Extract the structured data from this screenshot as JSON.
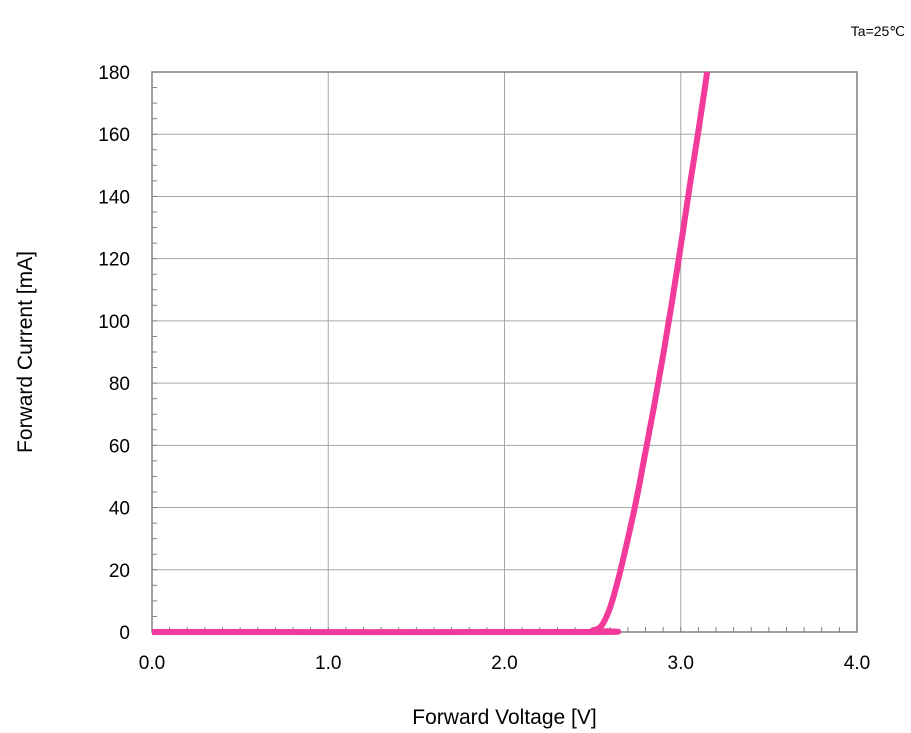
{
  "chart_data": {
    "type": "line",
    "title": "",
    "annotation": "Ta=25℃",
    "xlabel": "Forward Voltage [V]",
    "ylabel": "Forward Current [mA]",
    "xlim": [
      0.0,
      4.0
    ],
    "ylim": [
      0,
      180
    ],
    "x_ticks": [
      "0.0",
      "1.0",
      "2.0",
      "3.0",
      "4.0"
    ],
    "y_ticks": [
      "0",
      "20",
      "40",
      "60",
      "80",
      "100",
      "120",
      "140",
      "160",
      "180"
    ],
    "grid": true,
    "series": [
      {
        "color": "#f23a9b",
        "x": [
          0.0,
          2.45,
          2.5,
          2.55,
          2.6,
          2.65,
          2.7,
          2.75,
          2.8,
          2.85,
          2.9,
          2.95,
          3.0,
          3.05,
          3.1,
          3.15
        ],
        "y": [
          0,
          0,
          0.5,
          2,
          8,
          18,
          30,
          43,
          58,
          73,
          89,
          106,
          124,
          143,
          161,
          180
        ]
      }
    ]
  }
}
